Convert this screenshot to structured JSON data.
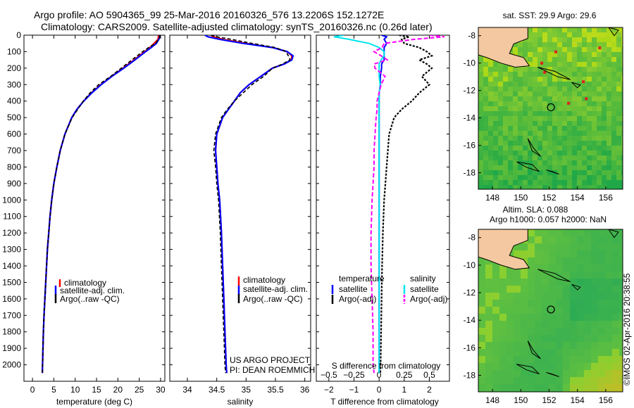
{
  "header": {
    "line1": "Argo profile: AO 5904365_99 25-Mar-2016 20160326_576 13.2206S 152.1272E",
    "line2": "Climatology: CARS2009. Satellite-adjusted climatology: synTS_20160326.nc (0.26d later)"
  },
  "colors": {
    "climatology": "#ff0000",
    "satellite": "#0000ff",
    "argo": "#000000",
    "sal_satellite": "#00e5ee",
    "sal_argo": "#ff00ff",
    "land": "#f4c8a0"
  },
  "credits": {
    "line1": "US ARGO PROJECT",
    "line2": "PI: DEAN ROEMMICH"
  },
  "side_stamp": "©IMOS 02-Apr-2016 20:38:55",
  "chart_data": [
    {
      "type": "line",
      "id": "temperature",
      "xlabel": "temperature (deg C)",
      "ylabel": "",
      "xlim": [
        -2,
        31
      ],
      "ylim": [
        2100,
        0
      ],
      "xticks": [
        0,
        5,
        10,
        15,
        20,
        25,
        30
      ],
      "xticklabels": [
        "0",
        "5",
        "10",
        "15",
        "20",
        "25",
        "30"
      ],
      "yticks": [
        0,
        100,
        200,
        300,
        400,
        500,
        600,
        700,
        800,
        900,
        1000,
        1100,
        1200,
        1300,
        1400,
        1500,
        1600,
        1700,
        1800,
        1900,
        2000
      ],
      "yticklabels": [
        "0",
        "100",
        "200",
        "300",
        "400",
        "500",
        "600",
        "700",
        "800",
        "900",
        "1000",
        "1100",
        "1200",
        "1300",
        "1400",
        "1500",
        "1600",
        "1700",
        "1800",
        "1900",
        "2000"
      ],
      "depth": [
        0,
        10,
        25,
        50,
        75,
        100,
        150,
        200,
        250,
        300,
        350,
        400,
        450,
        500,
        600,
        700,
        800,
        900,
        1000,
        1100,
        1200,
        1300,
        1400,
        1500,
        1600,
        1700,
        1800,
        1900,
        2000,
        2050
      ],
      "series": [
        {
          "name": "climatology",
          "values": [
            29.5,
            29.5,
            29.4,
            28.5,
            27.5,
            26.3,
            23.8,
            21.2,
            18.5,
            16.0,
            13.8,
            12.0,
            10.4,
            9.2,
            7.6,
            6.5,
            5.7,
            5.0,
            4.5,
            4.1,
            3.8,
            3.5,
            3.3,
            3.1,
            2.9,
            2.7,
            2.55,
            2.45,
            2.35,
            2.3
          ]
        },
        {
          "name": "satellite-adj. clim.",
          "values": [
            29.7,
            29.8,
            29.6,
            29.0,
            27.8,
            26.5,
            24.0,
            21.4,
            18.6,
            16.1,
            13.9,
            12.0,
            10.4,
            9.2,
            7.6,
            6.5,
            5.7,
            5.0,
            4.5,
            4.1,
            3.8,
            3.5,
            3.3,
            3.1,
            2.9,
            2.7,
            2.55,
            2.45,
            2.35,
            2.3
          ]
        },
        {
          "name": "Argo(..raw -QC)",
          "values": [
            29.8,
            29.8,
            29.5,
            28.8,
            27.2,
            25.8,
            23.3,
            20.8,
            18.3,
            15.5,
            13.5,
            11.9,
            10.6,
            9.3,
            7.6,
            6.5,
            5.7,
            5.0,
            4.5,
            4.1,
            3.8,
            3.5,
            3.3,
            3.1,
            2.9,
            2.7,
            2.55,
            2.45,
            2.35,
            2.3
          ]
        }
      ],
      "legend": [
        "climatology",
        "satellite-adj. clim.",
        "Argo(..raw -QC)"
      ]
    },
    {
      "type": "line",
      "id": "salinity",
      "xlabel": "salinity",
      "xlim": [
        33.7,
        36.1
      ],
      "ylim": [
        2100,
        0
      ],
      "xticks": [
        34,
        34.5,
        35,
        35.5,
        36
      ],
      "xticklabels": [
        "34",
        "34.5",
        "35",
        "35.5",
        "36"
      ],
      "depth": [
        0,
        10,
        25,
        50,
        75,
        100,
        125,
        150,
        175,
        200,
        250,
        300,
        350,
        400,
        450,
        500,
        600,
        700,
        800,
        900,
        1000,
        1200,
        1400,
        1600,
        1800,
        2000,
        2050
      ],
      "series": [
        {
          "name": "climatology",
          "values": [
            34.4,
            34.45,
            34.6,
            35.0,
            35.45,
            35.7,
            35.78,
            35.77,
            35.65,
            35.45,
            35.25,
            35.05,
            34.9,
            34.8,
            34.7,
            34.6,
            34.5,
            34.48,
            34.5,
            34.52,
            34.55,
            34.58,
            34.6,
            34.62,
            34.64,
            34.66,
            34.67
          ]
        },
        {
          "name": "satellite-adj. clim.",
          "values": [
            34.3,
            34.35,
            34.55,
            34.95,
            35.45,
            35.7,
            35.8,
            35.78,
            35.65,
            35.45,
            35.25,
            35.05,
            34.9,
            34.8,
            34.7,
            34.6,
            34.5,
            34.48,
            34.5,
            34.52,
            34.55,
            34.58,
            34.6,
            34.62,
            34.64,
            34.66,
            34.67
          ]
        },
        {
          "name": "Argo(..raw -QC)",
          "values": [
            34.4,
            34.5,
            34.75,
            35.1,
            35.5,
            35.68,
            35.72,
            35.75,
            35.62,
            35.45,
            35.3,
            35.1,
            34.95,
            34.8,
            34.68,
            34.58,
            34.48,
            34.45,
            34.48,
            34.5,
            34.53,
            34.56,
            34.58,
            34.6,
            34.62,
            34.64,
            34.65
          ]
        }
      ],
      "legend": [
        "climatology",
        "satellite-adj. clim.",
        "Argo(..raw -QC)"
      ]
    },
    {
      "type": "line",
      "id": "difference",
      "xlabel": "T difference from climatology",
      "xlabel_top": "S difference from climatology",
      "xlim": [
        -2.5,
        2.8
      ],
      "ylim": [
        2100,
        0
      ],
      "xticks": [
        -2,
        -1,
        0,
        1,
        2
      ],
      "xticklabels": [
        "−2",
        "−1",
        "0",
        "1",
        "2"
      ],
      "top_ticklabels": [
        "−0.5",
        "−0.25",
        "0",
        "0.25",
        "0.5"
      ],
      "depth": [
        0,
        10,
        25,
        50,
        75,
        100,
        125,
        150,
        175,
        200,
        250,
        300,
        350,
        400,
        450,
        500,
        600,
        700,
        800,
        900,
        1000,
        1200,
        1400,
        1600,
        1800,
        2000,
        2050
      ],
      "series": [
        {
          "name": "temperature satellite",
          "values": [
            0.1,
            0.3,
            0.2,
            0.3,
            0.2,
            0.2,
            0.2,
            0.2,
            0.1,
            0.1,
            0.05,
            0.05,
            0,
            0,
            0,
            0,
            0,
            0,
            0,
            0,
            0,
            0,
            0,
            0,
            0,
            0,
            0
          ]
        },
        {
          "name": "temperature Argo(-adj)",
          "values": [
            0.8,
            1.2,
            0.9,
            1.0,
            1.6,
            1.9,
            2.1,
            1.6,
            1.9,
            2.1,
            1.7,
            2.0,
            1.6,
            1.3,
            0.9,
            0.6,
            0.4,
            0.35,
            0.3,
            0.25,
            0.2,
            0.15,
            0.12,
            0.1,
            0.08,
            0.06,
            0.05
          ]
        },
        {
          "name": "salinity satellite",
          "values": [
            -0.35,
            -0.45,
            -0.3,
            -0.1,
            0,
            0.05,
            0.05,
            0.02,
            0,
            0,
            0,
            0.01,
            0,
            0,
            0,
            0,
            0,
            0,
            0,
            0,
            0,
            0,
            0,
            0,
            0,
            0,
            0
          ]
        },
        {
          "name": "salinity Argo(-adj)",
          "values": [
            0.5,
            0.65,
            0.35,
            0.05,
            0.03,
            -0.05,
            0.02,
            0.08,
            -0.05,
            -0.04,
            0.06,
            0.02,
            0,
            -0.02,
            -0.02,
            -0.03,
            -0.04,
            -0.05,
            -0.05,
            -0.06,
            -0.07,
            -0.08,
            -0.08,
            -0.07,
            -0.06,
            -0.06,
            -0.05
          ]
        }
      ],
      "legend_left_title": "temperature",
      "legend_right_title": "salinity",
      "legend_left": [
        "satellite",
        "Argo(-adj)"
      ],
      "legend_right": [
        "satellite",
        "Argo(-adj)"
      ]
    },
    {
      "type": "heatmap",
      "id": "sst_map",
      "title": "sat. SST: 29.9 Argo: 29.6",
      "xlim": [
        147,
        157.2
      ],
      "ylim": [
        -19.2,
        -7.4
      ],
      "xticks": [
        148,
        150,
        152,
        154,
        156
      ],
      "xticklabels": [
        "148",
        "150",
        "152",
        "154",
        "156"
      ],
      "yticks": [
        -8,
        -10,
        -12,
        -14,
        -16,
        -18
      ],
      "yticklabels": [
        "-8",
        "-10",
        "-12",
        "-14",
        "-16",
        "-18"
      ],
      "marker": {
        "lon": 152.1272,
        "lat": -13.2206
      }
    },
    {
      "type": "heatmap",
      "id": "sla_map",
      "title": "Altim. SLA: 0.088",
      "subtitle": "Argo h1000: 0.057 h2000: NaN",
      "xlim": [
        147,
        157.2
      ],
      "ylim": [
        -19.2,
        -7.4
      ],
      "xticks": [
        148,
        150,
        152,
        154,
        156
      ],
      "xticklabels": [
        "148",
        "150",
        "152",
        "154",
        "156"
      ],
      "yticks": [
        -8,
        -10,
        -12,
        -14,
        -16,
        -18
      ],
      "yticklabels": [
        "-8",
        "-10",
        "-12",
        "-14",
        "-16",
        "-18"
      ],
      "marker": {
        "lon": 152.1272,
        "lat": -13.2206
      }
    }
  ]
}
